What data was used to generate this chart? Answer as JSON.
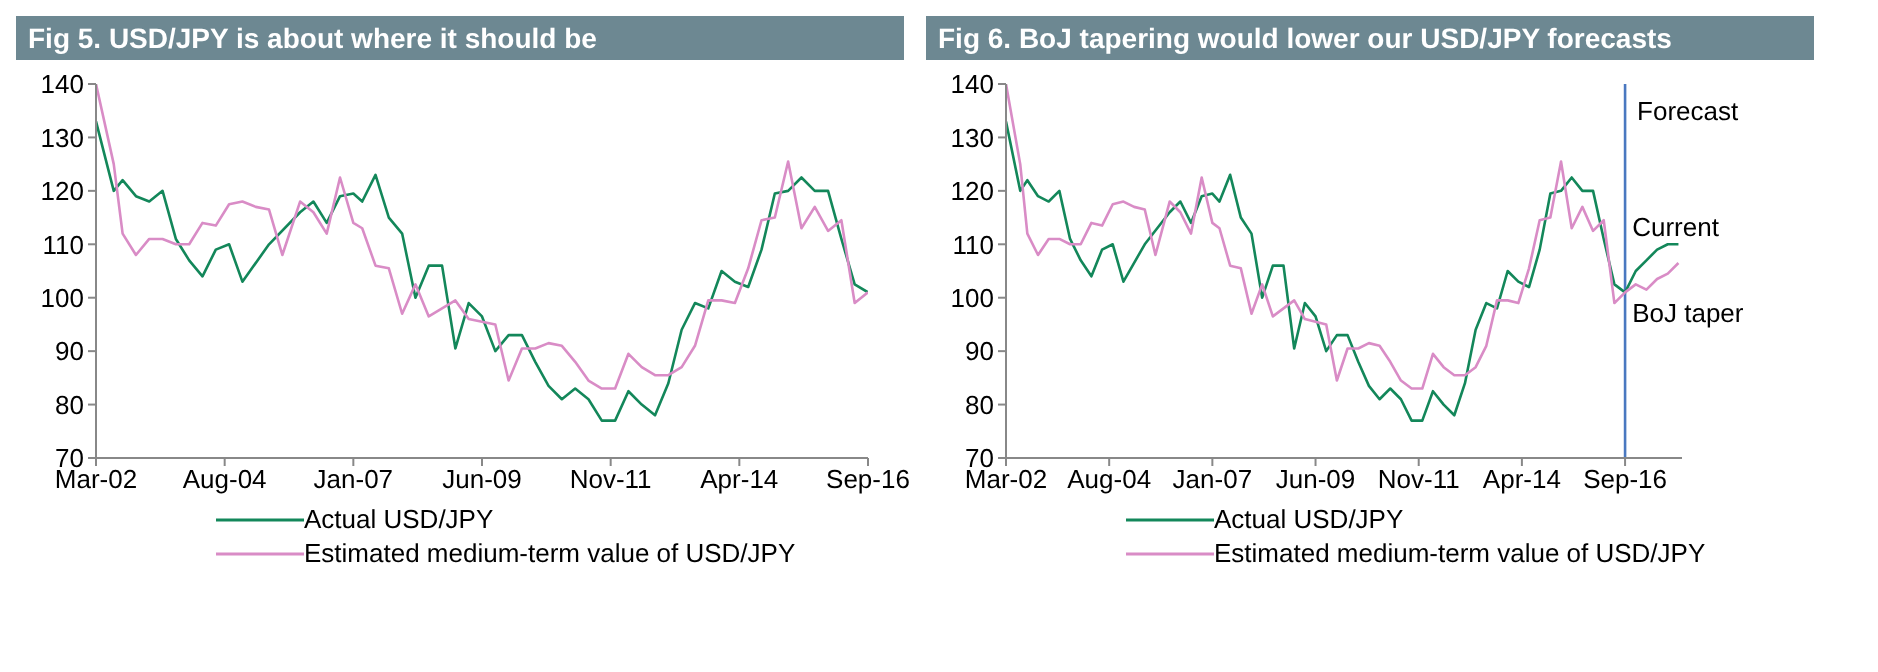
{
  "chart_data": [
    {
      "type": "line",
      "title": "Fig 5. USD/JPY is about where it should be",
      "legend": "bottom",
      "marker": "none",
      "line_style": "solid",
      "grid": false,
      "xlim": [
        "2002-03",
        "2016-09"
      ],
      "xticks": [
        {
          "value": "2002-03",
          "label": "Mar-02"
        },
        {
          "value": "2004-08",
          "label": "Aug-04"
        },
        {
          "value": "2007-01",
          "label": "Jan-07"
        },
        {
          "value": "2009-06",
          "label": "Jun-09"
        },
        {
          "value": "2011-11",
          "label": "Nov-11"
        },
        {
          "value": "2014-04",
          "label": "Apr-14"
        },
        {
          "value": "2016-09",
          "label": "Sep-16"
        }
      ],
      "ylim": [
        70,
        140
      ],
      "yticks": [
        70,
        80,
        90,
        100,
        110,
        120,
        130,
        140
      ],
      "series": [
        {
          "name": "Actual USD/JPY",
          "color": "#13875a",
          "x": [
            "2002-03",
            "2002-07",
            "2002-09",
            "2002-12",
            "2003-03",
            "2003-06",
            "2003-09",
            "2003-12",
            "2004-03",
            "2004-06",
            "2004-09",
            "2004-12",
            "2005-06",
            "2006-01",
            "2006-04",
            "2006-07",
            "2006-10",
            "2007-01",
            "2007-03",
            "2007-06",
            "2007-09",
            "2007-12",
            "2008-03",
            "2008-06",
            "2008-09",
            "2008-12",
            "2009-03",
            "2009-06",
            "2009-09",
            "2009-12",
            "2010-03",
            "2010-06",
            "2010-09",
            "2010-12",
            "2011-03",
            "2011-06",
            "2011-09",
            "2011-12",
            "2012-03",
            "2012-06",
            "2012-09",
            "2012-12",
            "2013-03",
            "2013-06",
            "2013-09",
            "2013-12",
            "2014-03",
            "2014-06",
            "2014-09",
            "2014-12",
            "2015-03",
            "2015-06",
            "2015-09",
            "2015-12",
            "2016-03",
            "2016-06",
            "2016-09"
          ],
          "values": [
            133,
            120,
            122,
            119,
            118,
            120,
            111,
            107,
            104,
            109,
            110,
            103,
            110,
            116,
            118,
            114,
            119,
            119.5,
            118,
            123,
            115,
            112,
            100,
            106,
            106,
            90.5,
            99,
            96.5,
            90,
            93,
            93,
            88,
            83.5,
            81,
            83,
            81,
            77,
            77,
            82.5,
            80,
            78,
            84,
            94,
            99,
            98,
            105,
            103,
            102,
            109,
            119.5,
            120,
            122.5,
            120,
            120,
            111,
            102.5,
            101
          ]
        },
        {
          "name": "Estimated medium-term value of USD/JPY",
          "color": "#d98cc6",
          "x": [
            "2002-03",
            "2002-07",
            "2002-09",
            "2002-12",
            "2003-03",
            "2003-06",
            "2003-09",
            "2003-12",
            "2004-03",
            "2004-06",
            "2004-09",
            "2004-12",
            "2005-03",
            "2005-06",
            "2005-09",
            "2006-01",
            "2006-04",
            "2006-07",
            "2006-10",
            "2007-01",
            "2007-03",
            "2007-06",
            "2007-09",
            "2007-12",
            "2008-03",
            "2008-06",
            "2008-09",
            "2008-12",
            "2009-03",
            "2009-06",
            "2009-09",
            "2009-12",
            "2010-03",
            "2010-06",
            "2010-09",
            "2010-12",
            "2011-03",
            "2011-06",
            "2011-09",
            "2011-12",
            "2012-03",
            "2012-06",
            "2012-09",
            "2012-12",
            "2013-03",
            "2013-06",
            "2013-09",
            "2013-12",
            "2014-03",
            "2014-06",
            "2014-09",
            "2014-12",
            "2015-03",
            "2015-06",
            "2015-09",
            "2015-12",
            "2016-03",
            "2016-06",
            "2016-09"
          ],
          "values": [
            140,
            125,
            112,
            108,
            111,
            111,
            110,
            110,
            114,
            113.5,
            117.5,
            118,
            117,
            116.5,
            108,
            118,
            116,
            112,
            122.5,
            114,
            113,
            106,
            105.5,
            97,
            102.5,
            96.5,
            98,
            99.5,
            96,
            95.5,
            95,
            84.5,
            90.5,
            90.5,
            91.5,
            91,
            88,
            84.5,
            83,
            83,
            89.5,
            87,
            85.5,
            85.5,
            87,
            91,
            99.5,
            99.5,
            99,
            105.5,
            114.5,
            115,
            125.5,
            113,
            117,
            112.5,
            114.5,
            99,
            101
          ]
        }
      ]
    },
    {
      "type": "line",
      "title": "Fig 6. BoJ tapering would lower our USD/JPY forecasts",
      "legend": "bottom",
      "marker": "none",
      "line_style": "solid",
      "grid": false,
      "xlim": [
        "2002-03",
        "2018-01"
      ],
      "xticks": [
        {
          "value": "2002-03",
          "label": "Mar-02"
        },
        {
          "value": "2004-08",
          "label": "Aug-04"
        },
        {
          "value": "2007-01",
          "label": "Jan-07"
        },
        {
          "value": "2009-06",
          "label": "Jun-09"
        },
        {
          "value": "2011-11",
          "label": "Nov-11"
        },
        {
          "value": "2014-04",
          "label": "Apr-14"
        },
        {
          "value": "2016-09",
          "label": "Sep-16"
        }
      ],
      "ylim": [
        70,
        140
      ],
      "yticks": [
        70,
        80,
        90,
        100,
        110,
        120,
        130,
        140
      ],
      "ref_lines": [
        {
          "axis": "x",
          "value": "2016-09",
          "label": "Forecast",
          "color": "#4a78c0"
        }
      ],
      "annotations": [
        {
          "text": "Current",
          "x": "2016-11",
          "y": 113
        },
        {
          "text": "BoJ taper",
          "x": "2016-11",
          "y": 97
        }
      ],
      "series": [
        {
          "name": "Actual USD/JPY",
          "color": "#13875a",
          "x": [
            "2002-03",
            "2002-07",
            "2002-09",
            "2002-12",
            "2003-03",
            "2003-06",
            "2003-09",
            "2003-12",
            "2004-03",
            "2004-06",
            "2004-09",
            "2004-12",
            "2005-06",
            "2006-01",
            "2006-04",
            "2006-07",
            "2006-10",
            "2007-01",
            "2007-03",
            "2007-06",
            "2007-09",
            "2007-12",
            "2008-03",
            "2008-06",
            "2008-09",
            "2008-12",
            "2009-03",
            "2009-06",
            "2009-09",
            "2009-12",
            "2010-03",
            "2010-06",
            "2010-09",
            "2010-12",
            "2011-03",
            "2011-06",
            "2011-09",
            "2011-12",
            "2012-03",
            "2012-06",
            "2012-09",
            "2012-12",
            "2013-03",
            "2013-06",
            "2013-09",
            "2013-12",
            "2014-03",
            "2014-06",
            "2014-09",
            "2014-12",
            "2015-03",
            "2015-06",
            "2015-09",
            "2015-12",
            "2016-03",
            "2016-06",
            "2016-09",
            "2016-12",
            "2017-03",
            "2017-06",
            "2017-09",
            "2017-12"
          ],
          "values": [
            133,
            120,
            122,
            119,
            118,
            120,
            111,
            107,
            104,
            109,
            110,
            103,
            110,
            116,
            118,
            114,
            119,
            119.5,
            118,
            123,
            115,
            112,
            100,
            106,
            106,
            90.5,
            99,
            96.5,
            90,
            93,
            93,
            88,
            83.5,
            81,
            83,
            81,
            77,
            77,
            82.5,
            80,
            78,
            84,
            94,
            99,
            98,
            105,
            103,
            102,
            109,
            119.5,
            120,
            122.5,
            120,
            120,
            111,
            102.5,
            101,
            105,
            107,
            109,
            110,
            110
          ]
        },
        {
          "name": "Estimated medium-term value of USD/JPY",
          "color": "#d98cc6",
          "x": [
            "2002-03",
            "2002-07",
            "2002-09",
            "2002-12",
            "2003-03",
            "2003-06",
            "2003-09",
            "2003-12",
            "2004-03",
            "2004-06",
            "2004-09",
            "2004-12",
            "2005-03",
            "2005-06",
            "2005-09",
            "2006-01",
            "2006-04",
            "2006-07",
            "2006-10",
            "2007-01",
            "2007-03",
            "2007-06",
            "2007-09",
            "2007-12",
            "2008-03",
            "2008-06",
            "2008-09",
            "2008-12",
            "2009-03",
            "2009-06",
            "2009-09",
            "2009-12",
            "2010-03",
            "2010-06",
            "2010-09",
            "2010-12",
            "2011-03",
            "2011-06",
            "2011-09",
            "2011-12",
            "2012-03",
            "2012-06",
            "2012-09",
            "2012-12",
            "2013-03",
            "2013-06",
            "2013-09",
            "2013-12",
            "2014-03",
            "2014-06",
            "2014-09",
            "2014-12",
            "2015-03",
            "2015-06",
            "2015-09",
            "2015-12",
            "2016-03",
            "2016-06",
            "2016-09",
            "2016-12",
            "2017-03",
            "2017-06",
            "2017-09",
            "2017-12"
          ],
          "values": [
            140,
            125,
            112,
            108,
            111,
            111,
            110,
            110,
            114,
            113.5,
            117.5,
            118,
            117,
            116.5,
            108,
            118,
            116,
            112,
            122.5,
            114,
            113,
            106,
            105.5,
            97,
            102.5,
            96.5,
            98,
            99.5,
            96,
            95.5,
            95,
            84.5,
            90.5,
            90.5,
            91.5,
            91,
            88,
            84.5,
            83,
            83,
            89.5,
            87,
            85.5,
            85.5,
            87,
            91,
            99.5,
            99.5,
            99,
            105.5,
            114.5,
            115,
            125.5,
            113,
            117,
            112.5,
            114.5,
            99,
            101,
            102.5,
            101.5,
            103.5,
            104.5,
            106.5
          ]
        }
      ]
    }
  ]
}
